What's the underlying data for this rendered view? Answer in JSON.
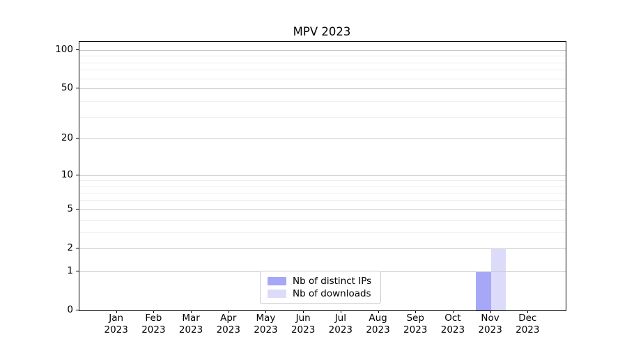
{
  "title": "MPV 2023",
  "chart_data": {
    "type": "bar",
    "title": "MPV 2023",
    "categories": [
      {
        "month": "Jan",
        "year": "2023"
      },
      {
        "month": "Feb",
        "year": "2023"
      },
      {
        "month": "Mar",
        "year": "2023"
      },
      {
        "month": "Apr",
        "year": "2023"
      },
      {
        "month": "May",
        "year": "2023"
      },
      {
        "month": "Jun",
        "year": "2023"
      },
      {
        "month": "Jul",
        "year": "2023"
      },
      {
        "month": "Aug",
        "year": "2023"
      },
      {
        "month": "Sep",
        "year": "2023"
      },
      {
        "month": "Oct",
        "year": "2023"
      },
      {
        "month": "Nov",
        "year": "2023"
      },
      {
        "month": "Dec",
        "year": "2023"
      }
    ],
    "series": [
      {
        "name": "Nb of distinct IPs",
        "color": "#a7a7f7",
        "values": [
          0,
          0,
          0,
          0,
          0,
          0,
          0,
          0,
          0,
          0,
          1,
          0
        ]
      },
      {
        "name": "Nb of downloads",
        "color": "#dcdcfa",
        "values": [
          0,
          0,
          0,
          0,
          0,
          0,
          0,
          0,
          0,
          0,
          2,
          0
        ]
      }
    ],
    "xlabel": "",
    "ylabel": "",
    "yscale": "log1p",
    "ylim": [
      0,
      116
    ],
    "yticks": [
      0,
      1,
      2,
      5,
      10,
      20,
      50,
      100
    ],
    "yticks_minor": [
      3,
      4,
      6,
      7,
      8,
      9,
      30,
      40,
      60,
      70,
      80,
      90
    ],
    "grid": "horizontal major+minor, drawn above bars",
    "legend_position": "lower center",
    "colors": {
      "grid_major": "#c8c8c8",
      "grid_minor": "#ececec",
      "axis": "#000000",
      "legend_border": "#cccccc",
      "background": "#ffffff"
    },
    "bar_width_fraction": 0.4
  }
}
